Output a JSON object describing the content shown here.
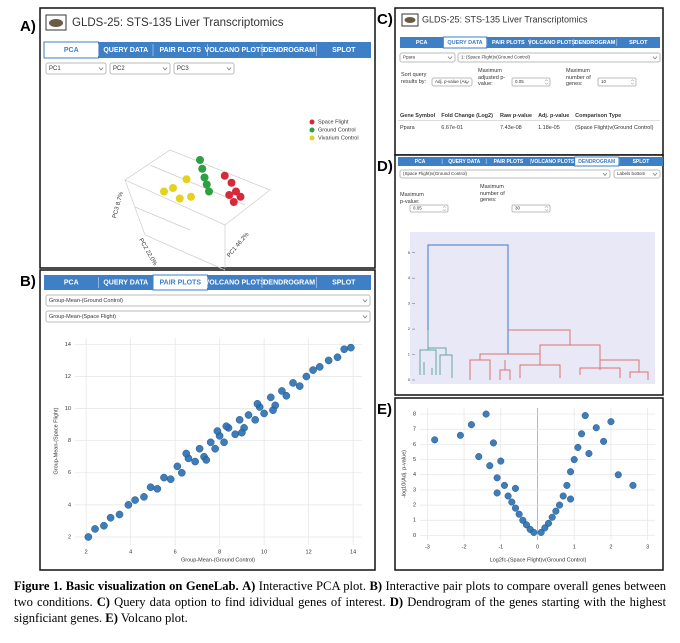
{
  "panel_a": {
    "label": "A)",
    "title": "GLDS-25: STS-135 Liver Transcriptomics",
    "tabs": [
      "PCA",
      "QUERY DATA",
      "PAIR PLOTS",
      "VOLCANO PLOTS",
      "DENDROGRAM",
      "SPLOT"
    ],
    "active_tab": 0,
    "selects": [
      "PC1",
      "PC2",
      "PC3"
    ],
    "axis_labels": [
      "PC3 8.7%",
      "PC2 22.0%",
      "PC1 46.2%"
    ],
    "series": [
      {
        "name": "Space Flight",
        "color": "#d62a3c",
        "x": [
          0.55,
          0.7,
          0.8,
          0.65,
          0.9,
          0.75
        ],
        "y": [
          0.55,
          0.35,
          0.1,
          0.0,
          -0.05,
          -0.2
        ]
      },
      {
        "name": "Ground Control",
        "color": "#2ca043",
        "x": [
          0.0,
          0.05,
          0.1,
          0.15,
          0.2
        ],
        "y": [
          1.0,
          0.75,
          0.5,
          0.3,
          0.1
        ]
      },
      {
        "name": "Vivarium Control",
        "color": "#e6d21e",
        "x": [
          -0.8,
          -0.6,
          -0.45,
          -0.3,
          -0.2
        ],
        "y": [
          0.1,
          0.2,
          -0.1,
          0.45,
          -0.05
        ]
      }
    ]
  },
  "panel_b": {
    "label": "B)",
    "tabs": [
      "PCA",
      "QUERY DATA",
      "PAIR PLOTS",
      "VOLCANO PLOTS",
      "DENDROGRAM",
      "SPLOT"
    ],
    "active_tab": 2,
    "selects": [
      "Group-Mean-(Ground Control)",
      "Group-Mean-(Space Flight)"
    ],
    "x_label": "Group-Mean-(Ground Control)",
    "y_label": "Group-Mean-(Space Flight)",
    "xlim": [
      1.5,
      14.4
    ],
    "ylim": [
      1.5,
      14.4
    ],
    "xticks": [
      2,
      4,
      6,
      8,
      10,
      12,
      14
    ],
    "yticks": [
      2,
      4,
      6,
      8,
      10,
      12,
      14
    ],
    "color": "#2a6fb0",
    "x": [
      2.1,
      2.4,
      2.8,
      3.1,
      3.5,
      3.9,
      4.2,
      4.6,
      4.9,
      5.2,
      5.5,
      5.8,
      6.1,
      6.3,
      6.6,
      6.9,
      7.1,
      7.3,
      7.6,
      7.8,
      8.0,
      8.2,
      8.4,
      8.7,
      8.9,
      9.1,
      9.3,
      9.6,
      9.8,
      10.0,
      10.3,
      10.5,
      10.8,
      11.0,
      11.3,
      11.6,
      11.9,
      12.2,
      12.5,
      12.9,
      13.3,
      13.6,
      13.9,
      6.5,
      7.4,
      8.3,
      9.0,
      9.7,
      10.4,
      7.9
    ],
    "y": [
      2.0,
      2.5,
      2.7,
      3.2,
      3.4,
      4.0,
      4.3,
      4.5,
      5.1,
      5.0,
      5.7,
      5.6,
      6.4,
      6.0,
      6.9,
      6.7,
      7.5,
      7.0,
      7.9,
      7.5,
      8.3,
      7.9,
      8.8,
      8.4,
      9.3,
      8.8,
      9.6,
      9.3,
      10.1,
      9.7,
      10.7,
      10.2,
      11.1,
      10.8,
      11.6,
      11.4,
      12.0,
      12.4,
      12.6,
      13.0,
      13.2,
      13.7,
      13.8,
      7.2,
      6.8,
      8.9,
      8.5,
      10.3,
      9.9,
      8.6
    ]
  },
  "panel_c": {
    "label": "C)",
    "title": "GLDS-25: STS-135 Liver Transcriptomics",
    "tabs": [
      "PCA",
      "QUERY DATA",
      "PAIR PLOTS",
      "VOLCANO PLOTS",
      "DENDROGRAM",
      "SPLOT"
    ],
    "active_tab": 1,
    "gene_select": "Ppara",
    "comparison_select": "1: (Space Flight)v(Ground Control)",
    "sort_label": "Sort query results by:",
    "sort_value": "Adj. p-value (As",
    "pvalue_label": "Maximum adjusted p-value:",
    "pvalue": "0.05",
    "genes_label": "Maximum number of genes:",
    "genes": "10",
    "table": {
      "header": [
        "Gene Symbol",
        "Fold Change (Log2)",
        "Raw p-value",
        "Adj. p-value",
        "Comparison Type"
      ],
      "rows": [
        [
          "Ppara",
          "6.67e-01",
          "7.43e-08",
          "1.18e-05",
          "(Space Flight)v(Ground Control)"
        ]
      ]
    }
  },
  "panel_d": {
    "label": "D)",
    "tabs": [
      "PCA",
      "QUERY DATA",
      "PAIR PLOTS",
      "VOLCANO PLOTS",
      "DENDROGRAM",
      "SPLOT"
    ],
    "active_tab": 4,
    "selects": [
      "(Space Flight)v(Ground Control)",
      "Labels bottom"
    ],
    "pvalue_label": "Maximum p-value:",
    "pvalue": "0.05",
    "genes_label": "Maximum number of genes:",
    "genes": "30",
    "ylim": [
      0,
      5.5
    ],
    "yticks": [
      0,
      1,
      2,
      3,
      4,
      5
    ]
  },
  "panel_e": {
    "label": "E)",
    "x_label": "Log2fc-(Space Flight)v(Ground Control)",
    "y_label": "-log10(Adj. p-value)",
    "xlim": [
      -3.2,
      3.2
    ],
    "ylim": [
      -0.3,
      8.4
    ],
    "xticks": [
      -3,
      -2,
      -1,
      0,
      1,
      2,
      3
    ],
    "yticks": [
      0,
      1,
      2,
      3,
      4,
      5,
      6,
      7,
      8
    ],
    "color": "#2a6fb0",
    "x": [
      -2.8,
      -2.1,
      -1.8,
      -1.6,
      -1.4,
      -1.3,
      -1.2,
      -1.1,
      -1.0,
      -0.9,
      -0.8,
      -0.7,
      -0.6,
      -0.5,
      -0.4,
      -0.3,
      -0.2,
      -0.1,
      0.1,
      0.2,
      0.3,
      0.4,
      0.5,
      0.6,
      0.7,
      0.8,
      0.9,
      1.0,
      1.1,
      1.2,
      1.3,
      1.4,
      1.6,
      1.8,
      2.0,
      2.2,
      2.6,
      -1.1,
      0.9,
      -0.6
    ],
    "y": [
      6.3,
      6.6,
      7.3,
      5.2,
      8.0,
      4.6,
      6.1,
      3.8,
      4.9,
      3.3,
      2.6,
      2.2,
      1.8,
      1.4,
      1.0,
      0.7,
      0.4,
      0.2,
      0.2,
      0.5,
      0.8,
      1.2,
      1.6,
      2.0,
      2.6,
      3.3,
      4.2,
      5.0,
      5.8,
      6.7,
      7.9,
      5.4,
      7.1,
      6.2,
      7.5,
      4.0,
      3.3,
      2.8,
      2.4,
      3.1
    ]
  },
  "caption": [
    "Figure 1. Basic visualization on GeneLab.",
    "A)",
    "Interactive PCA plot.",
    "B)",
    "Interactive pair plots to compare overall genes between two conditions.",
    "C)",
    "Query data option to find idividual genes of interest.",
    "D)",
    "Dendrogram of the genes starting with the highest signficiant genes.",
    "E)",
    "Volcano plot."
  ]
}
